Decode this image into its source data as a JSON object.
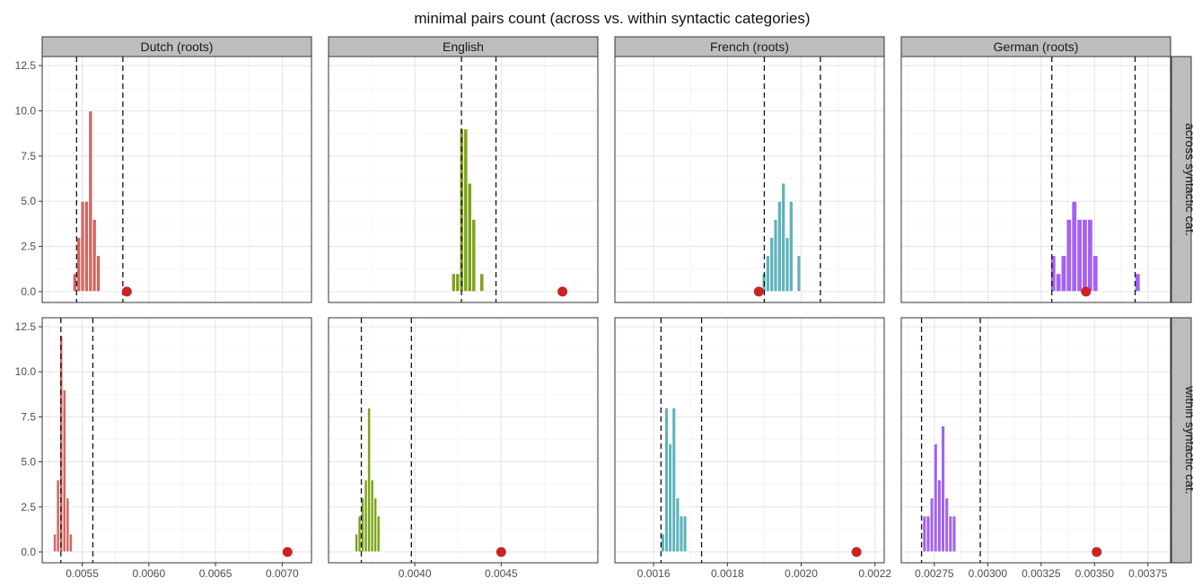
{
  "chart_data": {
    "type": "bar",
    "title": "minimal pairs count (across vs. within syntactic categories)",
    "columns": [
      "Dutch (roots)",
      "English",
      "French (roots)",
      "German (roots)"
    ],
    "rows": [
      "across syntactic cat.",
      "within syntactic cat."
    ],
    "y_ticks": [
      0,
      2.5,
      5,
      7.5,
      10,
      12.5
    ],
    "y_tick_labels": [
      "0.0",
      "2.5",
      "5.0",
      "7.5",
      "10.0",
      "12.5"
    ],
    "ylim": [
      -0.6,
      13.0
    ],
    "grid": true,
    "colors": {
      "Dutch (roots)": "#d2665f",
      "English": "#7ca41c",
      "French (roots)": "#5fb3bc",
      "German (roots)": "#a462f2",
      "point": "#cc2222"
    },
    "x_axes": [
      {
        "xlim": [
          0.0052,
          0.00722
        ],
        "ticks": [
          0.0055,
          0.006,
          0.0065,
          0.007
        ],
        "tick_labels": [
          "0.0055",
          "0.0060",
          "0.0065",
          "0.0070"
        ]
      },
      {
        "xlim": [
          0.0035,
          0.00506
        ],
        "ticks": [
          0.004,
          0.0045
        ],
        "tick_labels": [
          "0.0040",
          "0.0045"
        ]
      },
      {
        "xlim": [
          0.001495,
          0.002225
        ],
        "ticks": [
          0.0016,
          0.0018,
          0.002,
          0.0022
        ],
        "tick_labels": [
          "0.0016",
          "0.0018",
          "0.0020",
          "0.0022"
        ]
      },
      {
        "xlim": [
          0.002595,
          0.003856
        ],
        "ticks": [
          0.00275,
          0.003,
          0.00325,
          0.0035,
          0.00375
        ],
        "tick_labels": [
          "0.00275",
          "0.00300",
          "0.00325",
          "0.00350",
          "0.00375"
        ]
      }
    ],
    "panels": [
      {
        "column": "Dutch (roots)",
        "row": "across syntactic cat.",
        "bin_width": 2.94e-05,
        "bin_start": 0.00543,
        "counts": [
          1,
          3,
          5,
          5,
          10,
          4,
          2
        ],
        "ci": [
          0.005458,
          0.005805
        ],
        "observed": 0.005835
      },
      {
        "column": "English",
        "row": "across syntactic cat.",
        "bin_width": 2.33e-05,
        "bin_start": 0.004213,
        "counts": [
          1,
          1,
          9,
          9,
          6,
          4,
          0,
          1
        ],
        "ci": [
          0.00427,
          0.00447
        ],
        "observed": 0.004855
      },
      {
        "column": "French (roots)",
        "row": "across syntactic cat.",
        "bin_width": 1.05e-05,
        "bin_start": 0.001894,
        "counts": [
          1,
          2,
          3,
          4,
          5,
          6,
          3,
          5,
          0,
          2
        ],
        "ci": [
          0.0019,
          0.002052
        ],
        "observed": 0.001885
      },
      {
        "column": "German (roots)",
        "row": "across syntactic cat.",
        "bin_width": 2.47e-05,
        "bin_start": 0.003294,
        "counts": [
          2,
          1,
          2,
          4,
          5,
          4,
          4,
          4,
          2,
          0,
          0,
          0,
          0,
          0,
          0,
          0,
          1
        ],
        "ci": [
          0.0033,
          0.00369
        ],
        "observed": 0.00346
      },
      {
        "column": "Dutch (roots)",
        "row": "within syntactic cat.",
        "bin_width": 2.39e-05,
        "bin_start": 0.005283,
        "counts": [
          1,
          4,
          12,
          9,
          3,
          1
        ],
        "ci": [
          0.00534,
          0.00558
        ],
        "observed": 0.00704
      },
      {
        "column": "English",
        "row": "within syntactic cat.",
        "bin_width": 1.825e-05,
        "bin_start": 0.0036525,
        "counts": [
          1,
          2,
          3,
          4,
          8,
          4,
          3,
          2
        ],
        "ci": [
          0.00369,
          0.00398
        ],
        "observed": 0.0045
      },
      {
        "column": "French (roots)",
        "row": "within syntactic cat.",
        "bin_width": 1e-05,
        "bin_start": 0.00162,
        "counts": [
          1,
          8,
          6,
          8,
          3,
          2,
          2
        ],
        "ci": [
          0.00162,
          0.00173
        ],
        "observed": 0.00215
      },
      {
        "column": "German (roots)",
        "row": "within syntactic cat.",
        "bin_width": 1.74e-05,
        "bin_start": 0.002695,
        "counts": [
          2,
          2,
          3,
          6,
          4,
          7,
          3,
          2,
          2
        ],
        "ci": [
          0.00269,
          0.002965
        ],
        "observed": 0.00351
      }
    ]
  }
}
